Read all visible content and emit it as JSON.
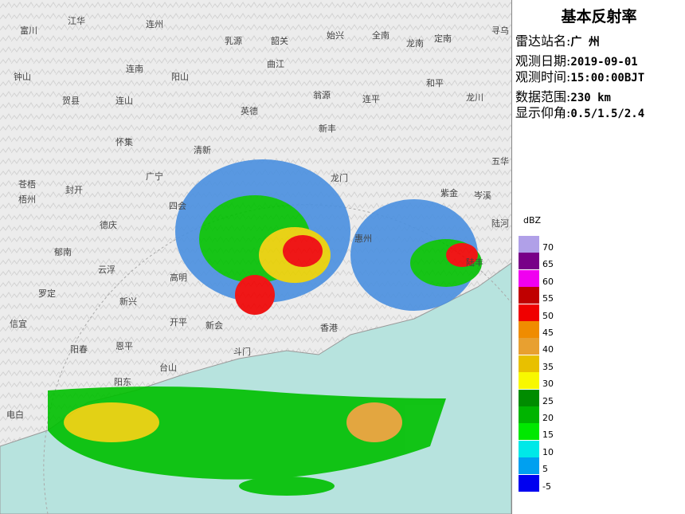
{
  "panel": {
    "title": "基本反射率",
    "fields": [
      {
        "label": "雷达站名:",
        "value": "广 州"
      },
      {
        "label": "观测日期:",
        "value": "2019-09-01"
      },
      {
        "label": "观测时间:",
        "value": "15:00:00BJT"
      },
      {
        "label": "数据范围:",
        "value": "230 km"
      },
      {
        "label": "显示仰角:",
        "value": "0.5/1.5/2.4"
      }
    ]
  },
  "legend": {
    "unit": "dBZ",
    "levels": [
      {
        "label": "70",
        "color": "#b0a0e8"
      },
      {
        "label": "65",
        "color": "#780088"
      },
      {
        "label": "60",
        "color": "#f000f0"
      },
      {
        "label": "55",
        "color": "#c00000"
      },
      {
        "label": "50",
        "color": "#f00000"
      },
      {
        "label": "45",
        "color": "#f08c00"
      },
      {
        "label": "40",
        "color": "#e8a030"
      },
      {
        "label": "35",
        "color": "#e8c000"
      },
      {
        "label": "30",
        "color": "#f8f800"
      },
      {
        "label": "25",
        "color": "#008c00"
      },
      {
        "label": "20",
        "color": "#00b400"
      },
      {
        "label": "15",
        "color": "#00e800"
      },
      {
        "label": "10",
        "color": "#00e8e8"
      },
      {
        "label": "5",
        "color": "#00a0f0"
      },
      {
        "label": "-5",
        "color": "#0000f0"
      }
    ]
  },
  "places": [
    "富川",
    "江华",
    "连州",
    "乳源",
    "韶关",
    "始兴",
    "全南",
    "龙南",
    "定南",
    "寻乌",
    "钟山",
    "连南",
    "阳山",
    "曲江",
    "翁源",
    "和平",
    "贺县",
    "连山",
    "英德",
    "连平",
    "龙川",
    "怀集",
    "清新",
    "新丰",
    "五华",
    "苍梧",
    "梧州",
    "封开",
    "广宁",
    "四会",
    "龙门",
    "紫金",
    "陆河",
    "郁南",
    "德庆",
    "惠州",
    "云浮",
    "高明",
    "罗定",
    "新兴",
    "开平",
    "新会",
    "斗门",
    "香港",
    "信宜",
    "阳春",
    "恩平",
    "台山",
    "阳东",
    "电白",
    "岑溪",
    "陆丰"
  ]
}
